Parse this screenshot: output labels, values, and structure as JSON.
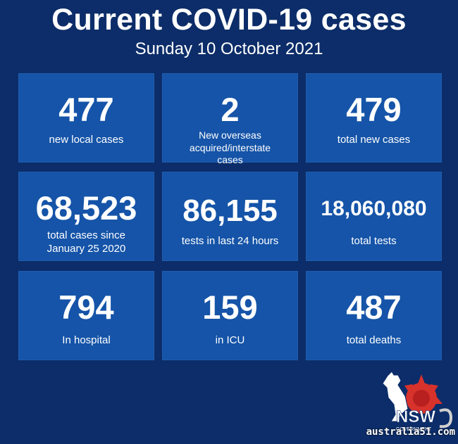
{
  "header": {
    "title": "Current COVID-19 cases",
    "date": "Sunday 10 October 2021"
  },
  "stats": [
    {
      "value": "477",
      "label": "new local cases"
    },
    {
      "value": "2",
      "label": "New overseas acquired/interstate cases"
    },
    {
      "value": "479",
      "label": "total new cases"
    },
    {
      "value": "68,523",
      "label": "total cases since January 25 2020"
    },
    {
      "value": "86,155",
      "label": "tests in last 24 hours"
    },
    {
      "value": "18,060,080",
      "label": "total tests"
    },
    {
      "value": "794",
      "label": "In hospital"
    },
    {
      "value": "159",
      "label": "in ICU"
    },
    {
      "value": "487",
      "label": "total deaths"
    }
  ],
  "branding": {
    "logo_text": "NSW",
    "logo_subtext": "GOVERNMENT",
    "watermark": "australia51.com"
  },
  "colors": {
    "background": "#0c2d69",
    "card": "#1554a8",
    "text": "#ffffff",
    "logo_red": "#d7322b"
  }
}
